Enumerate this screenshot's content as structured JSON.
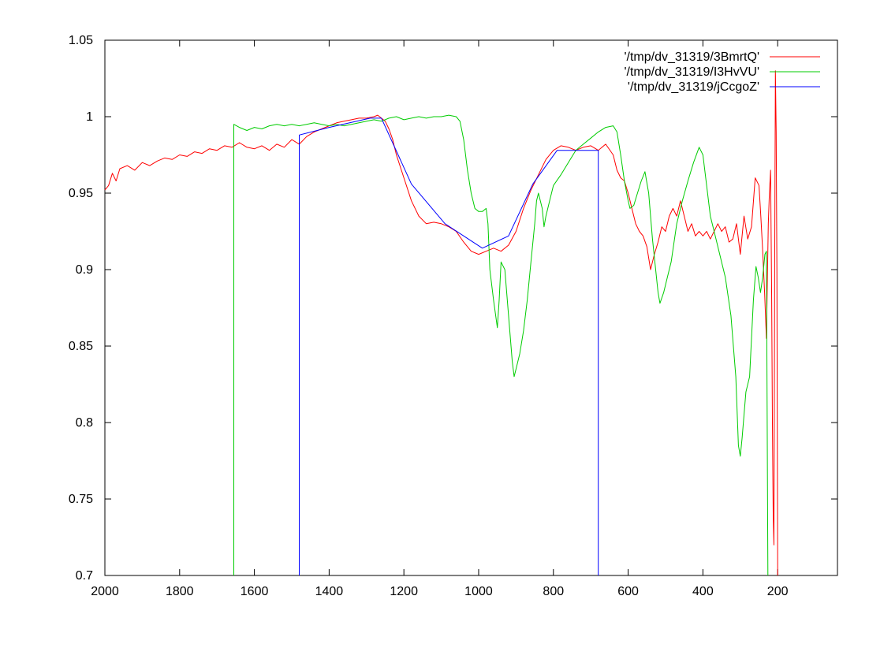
{
  "chart_data": {
    "type": "line",
    "title": "",
    "xlabel": "",
    "ylabel": "",
    "xlim": [
      2000,
      40
    ],
    "ylim": [
      0.7,
      1.05
    ],
    "x_reversed": true,
    "grid": false,
    "legend_position": "top-right",
    "x_ticks": [
      2000,
      1800,
      1600,
      1400,
      1200,
      1000,
      800,
      600,
      400,
      200
    ],
    "x_tick_labels": [
      "2000",
      "1800",
      "1600",
      "1400",
      "1200",
      "1000",
      "800",
      "600",
      "400",
      "200"
    ],
    "y_ticks": [
      0.7,
      0.75,
      0.8,
      0.85,
      0.9,
      0.95,
      1.0,
      1.05
    ],
    "y_tick_labels": [
      "0.7",
      "0.75",
      "0.8",
      "0.85",
      "0.9",
      "0.95",
      "1",
      "1.05"
    ],
    "series": [
      {
        "name": "'/tmp/dv_31319/3BmrtQ'",
        "color": "#ff0000",
        "points": [
          [
            2000,
            0.952
          ],
          [
            1990,
            0.955
          ],
          [
            1980,
            0.963
          ],
          [
            1970,
            0.958
          ],
          [
            1960,
            0.966
          ],
          [
            1940,
            0.968
          ],
          [
            1920,
            0.965
          ],
          [
            1900,
            0.97
          ],
          [
            1880,
            0.968
          ],
          [
            1860,
            0.971
          ],
          [
            1840,
            0.973
          ],
          [
            1820,
            0.972
          ],
          [
            1800,
            0.975
          ],
          [
            1780,
            0.974
          ],
          [
            1760,
            0.977
          ],
          [
            1740,
            0.976
          ],
          [
            1720,
            0.979
          ],
          [
            1700,
            0.978
          ],
          [
            1680,
            0.981
          ],
          [
            1660,
            0.98
          ],
          [
            1640,
            0.983
          ],
          [
            1620,
            0.98
          ],
          [
            1600,
            0.979
          ],
          [
            1580,
            0.981
          ],
          [
            1560,
            0.978
          ],
          [
            1540,
            0.982
          ],
          [
            1520,
            0.98
          ],
          [
            1500,
            0.985
          ],
          [
            1480,
            0.982
          ],
          [
            1460,
            0.987
          ],
          [
            1440,
            0.99
          ],
          [
            1420,
            0.992
          ],
          [
            1400,
            0.994
          ],
          [
            1380,
            0.996
          ],
          [
            1360,
            0.997
          ],
          [
            1340,
            0.998
          ],
          [
            1320,
            0.999
          ],
          [
            1300,
            0.999
          ],
          [
            1280,
            1.0
          ],
          [
            1270,
            1.001
          ],
          [
            1260,
            0.999
          ],
          [
            1250,
            0.997
          ],
          [
            1240,
            0.992
          ],
          [
            1230,
            0.985
          ],
          [
            1220,
            0.975
          ],
          [
            1200,
            0.96
          ],
          [
            1180,
            0.945
          ],
          [
            1160,
            0.935
          ],
          [
            1140,
            0.93
          ],
          [
            1120,
            0.931
          ],
          [
            1100,
            0.93
          ],
          [
            1080,
            0.928
          ],
          [
            1060,
            0.925
          ],
          [
            1040,
            0.918
          ],
          [
            1020,
            0.912
          ],
          [
            1000,
            0.91
          ],
          [
            980,
            0.912
          ],
          [
            960,
            0.914
          ],
          [
            940,
            0.912
          ],
          [
            920,
            0.916
          ],
          [
            900,
            0.925
          ],
          [
            880,
            0.94
          ],
          [
            860,
            0.952
          ],
          [
            840,
            0.962
          ],
          [
            820,
            0.972
          ],
          [
            800,
            0.978
          ],
          [
            780,
            0.981
          ],
          [
            760,
            0.98
          ],
          [
            740,
            0.978
          ],
          [
            720,
            0.98
          ],
          [
            700,
            0.981
          ],
          [
            680,
            0.978
          ],
          [
            660,
            0.982
          ],
          [
            640,
            0.975
          ],
          [
            630,
            0.965
          ],
          [
            620,
            0.96
          ],
          [
            610,
            0.958
          ],
          [
            600,
            0.95
          ],
          [
            590,
            0.94
          ],
          [
            580,
            0.93
          ],
          [
            570,
            0.925
          ],
          [
            560,
            0.922
          ],
          [
            550,
            0.915
          ],
          [
            540,
            0.9
          ],
          [
            530,
            0.91
          ],
          [
            520,
            0.918
          ],
          [
            510,
            0.928
          ],
          [
            500,
            0.925
          ],
          [
            490,
            0.935
          ],
          [
            480,
            0.94
          ],
          [
            470,
            0.935
          ],
          [
            460,
            0.945
          ],
          [
            450,
            0.935
          ],
          [
            440,
            0.925
          ],
          [
            430,
            0.93
          ],
          [
            420,
            0.922
          ],
          [
            410,
            0.925
          ],
          [
            400,
            0.922
          ],
          [
            390,
            0.925
          ],
          [
            380,
            0.92
          ],
          [
            370,
            0.925
          ],
          [
            360,
            0.93
          ],
          [
            350,
            0.925
          ],
          [
            340,
            0.928
          ],
          [
            330,
            0.918
          ],
          [
            320,
            0.92
          ],
          [
            310,
            0.93
          ],
          [
            300,
            0.91
          ],
          [
            290,
            0.935
          ],
          [
            280,
            0.92
          ],
          [
            270,
            0.928
          ],
          [
            260,
            0.96
          ],
          [
            250,
            0.955
          ],
          [
            245,
            0.935
          ],
          [
            240,
            0.912
          ],
          [
            235,
            0.885
          ],
          [
            230,
            0.855
          ],
          [
            225,
            0.93
          ],
          [
            222,
            0.95
          ],
          [
            219,
            0.965
          ],
          [
            216,
            0.88
          ],
          [
            214,
            0.8
          ],
          [
            212,
            0.74
          ],
          [
            210,
            0.72
          ],
          [
            208,
            0.9
          ],
          [
            206,
            1.03
          ],
          [
            204,
            0.99
          ],
          [
            202,
            0.9
          ],
          [
            200,
            0.7
          ]
        ]
      },
      {
        "name": "'/tmp/dv_31319/I3HvVU'",
        "color": "#00cc00",
        "points": [
          [
            1655,
            0.7
          ],
          [
            1655,
            0.995
          ],
          [
            1640,
            0.993
          ],
          [
            1620,
            0.991
          ],
          [
            1600,
            0.993
          ],
          [
            1580,
            0.992
          ],
          [
            1560,
            0.994
          ],
          [
            1540,
            0.995
          ],
          [
            1520,
            0.994
          ],
          [
            1500,
            0.995
          ],
          [
            1480,
            0.994
          ],
          [
            1460,
            0.995
          ],
          [
            1440,
            0.996
          ],
          [
            1420,
            0.995
          ],
          [
            1400,
            0.994
          ],
          [
            1380,
            0.995
          ],
          [
            1360,
            0.994
          ],
          [
            1340,
            0.995
          ],
          [
            1320,
            0.996
          ],
          [
            1300,
            0.997
          ],
          [
            1280,
            0.998
          ],
          [
            1260,
            0.997
          ],
          [
            1240,
            0.999
          ],
          [
            1220,
            1.0
          ],
          [
            1200,
            0.998
          ],
          [
            1180,
            0.999
          ],
          [
            1160,
            1.0
          ],
          [
            1140,
            0.999
          ],
          [
            1120,
            1.0
          ],
          [
            1100,
            1.0
          ],
          [
            1080,
            1.001
          ],
          [
            1060,
            1.0
          ],
          [
            1050,
            0.997
          ],
          [
            1040,
            0.985
          ],
          [
            1030,
            0.965
          ],
          [
            1020,
            0.95
          ],
          [
            1010,
            0.94
          ],
          [
            1000,
            0.938
          ],
          [
            990,
            0.938
          ],
          [
            980,
            0.94
          ],
          [
            975,
            0.93
          ],
          [
            970,
            0.9
          ],
          [
            960,
            0.88
          ],
          [
            950,
            0.862
          ],
          [
            945,
            0.88
          ],
          [
            940,
            0.905
          ],
          [
            930,
            0.9
          ],
          [
            920,
            0.87
          ],
          [
            910,
            0.84
          ],
          [
            905,
            0.83
          ],
          [
            900,
            0.835
          ],
          [
            890,
            0.845
          ],
          [
            880,
            0.86
          ],
          [
            870,
            0.88
          ],
          [
            860,
            0.905
          ],
          [
            850,
            0.93
          ],
          [
            845,
            0.945
          ],
          [
            840,
            0.95
          ],
          [
            830,
            0.94
          ],
          [
            825,
            0.928
          ],
          [
            820,
            0.935
          ],
          [
            810,
            0.945
          ],
          [
            800,
            0.955
          ],
          [
            780,
            0.962
          ],
          [
            760,
            0.97
          ],
          [
            740,
            0.978
          ],
          [
            720,
            0.982
          ],
          [
            700,
            0.986
          ],
          [
            680,
            0.99
          ],
          [
            660,
            0.993
          ],
          [
            640,
            0.994
          ],
          [
            630,
            0.99
          ],
          [
            620,
            0.975
          ],
          [
            610,
            0.958
          ],
          [
            600,
            0.945
          ],
          [
            595,
            0.94
          ],
          [
            585,
            0.942
          ],
          [
            575,
            0.95
          ],
          [
            565,
            0.958
          ],
          [
            555,
            0.964
          ],
          [
            545,
            0.95
          ],
          [
            535,
            0.92
          ],
          [
            520,
            0.885
          ],
          [
            515,
            0.878
          ],
          [
            505,
            0.885
          ],
          [
            495,
            0.895
          ],
          [
            485,
            0.905
          ],
          [
            470,
            0.93
          ],
          [
            455,
            0.945
          ],
          [
            440,
            0.958
          ],
          [
            425,
            0.97
          ],
          [
            410,
            0.98
          ],
          [
            400,
            0.975
          ],
          [
            390,
            0.955
          ],
          [
            380,
            0.935
          ],
          [
            370,
            0.925
          ],
          [
            355,
            0.91
          ],
          [
            340,
            0.895
          ],
          [
            325,
            0.87
          ],
          [
            312,
            0.83
          ],
          [
            305,
            0.785
          ],
          [
            300,
            0.778
          ],
          [
            295,
            0.79
          ],
          [
            285,
            0.82
          ],
          [
            275,
            0.83
          ],
          [
            265,
            0.88
          ],
          [
            258,
            0.902
          ],
          [
            252,
            0.895
          ],
          [
            246,
            0.885
          ],
          [
            240,
            0.895
          ],
          [
            234,
            0.91
          ],
          [
            230,
            0.912
          ],
          [
            226,
            0.7
          ]
        ]
      },
      {
        "name": "'/tmp/dv_31319/jCcgoZ'",
        "color": "#0000ff",
        "points": [
          [
            1480,
            0.7
          ],
          [
            1480,
            0.988
          ],
          [
            1400,
            0.993
          ],
          [
            1290,
            0.999
          ],
          [
            1260,
            0.999
          ],
          [
            1180,
            0.956
          ],
          [
            1090,
            0.93
          ],
          [
            990,
            0.914
          ],
          [
            920,
            0.922
          ],
          [
            855,
            0.956
          ],
          [
            790,
            0.978
          ],
          [
            680,
            0.978
          ],
          [
            680,
            0.7
          ]
        ]
      }
    ]
  }
}
